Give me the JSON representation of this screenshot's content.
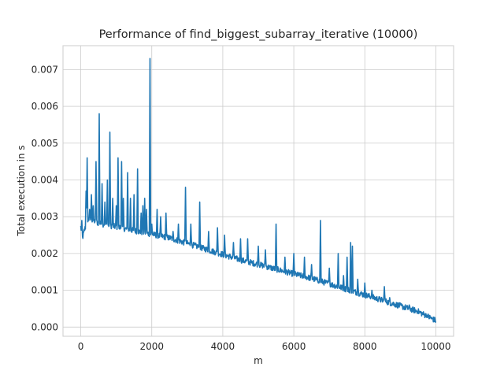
{
  "chart_data": {
    "type": "line",
    "title": "Performance of find_biggest_subarray_iterative  (10000)",
    "xlabel": "m",
    "ylabel": "Total execution in s",
    "xlim": [
      -500,
      10500
    ],
    "ylim": [
      -0.00025,
      0.00765
    ],
    "xticks": [
      0,
      2000,
      4000,
      6000,
      8000,
      10000
    ],
    "xtick_labels": [
      "0",
      "2000",
      "4000",
      "6000",
      "8000",
      "10000"
    ],
    "yticks": [
      0.0,
      0.001,
      0.002,
      0.003,
      0.004,
      0.005,
      0.006,
      0.007
    ],
    "ytick_labels": [
      "0.000",
      "0.001",
      "0.002",
      "0.003",
      "0.004",
      "0.005",
      "0.006",
      "0.007"
    ],
    "grid": true,
    "legend": "none",
    "color": "#1f77b4",
    "x_range": [
      0,
      10000
    ],
    "baseline": [
      [
        0,
        0.0027
      ],
      [
        50,
        0.0024
      ],
      [
        100,
        0.0026
      ],
      [
        200,
        0.0029
      ],
      [
        300,
        0.0029
      ],
      [
        500,
        0.0028
      ],
      [
        750,
        0.00275
      ],
      [
        1000,
        0.0027
      ],
      [
        1250,
        0.00265
      ],
      [
        1500,
        0.0026
      ],
      [
        2000,
        0.0025
      ],
      [
        2500,
        0.0024
      ],
      [
        3000,
        0.00225
      ],
      [
        3500,
        0.0021
      ],
      [
        4000,
        0.00195
      ],
      [
        4500,
        0.0018
      ],
      [
        5000,
        0.00168
      ],
      [
        5500,
        0.00155
      ],
      [
        6000,
        0.00142
      ],
      [
        6500,
        0.0013
      ],
      [
        7000,
        0.00115
      ],
      [
        7500,
        0.001
      ],
      [
        8000,
        0.00085
      ],
      [
        8500,
        0.0007
      ],
      [
        9000,
        0.00055
      ],
      [
        9500,
        0.0004
      ],
      [
        10000,
        0.00015
      ]
    ],
    "spikes": [
      [
        30,
        0.0029
      ],
      [
        150,
        0.0037
      ],
      [
        180,
        0.0046
      ],
      [
        250,
        0.0032
      ],
      [
        300,
        0.0036
      ],
      [
        350,
        0.0033
      ],
      [
        430,
        0.0045
      ],
      [
        520,
        0.0058
      ],
      [
        600,
        0.0039
      ],
      [
        680,
        0.0034
      ],
      [
        750,
        0.004
      ],
      [
        820,
        0.0053
      ],
      [
        900,
        0.0035
      ],
      [
        1000,
        0.0033
      ],
      [
        1050,
        0.0046
      ],
      [
        1150,
        0.0045
      ],
      [
        1200,
        0.0035
      ],
      [
        1320,
        0.0042
      ],
      [
        1400,
        0.0035
      ],
      [
        1500,
        0.0036
      ],
      [
        1600,
        0.0043
      ],
      [
        1700,
        0.0031
      ],
      [
        1750,
        0.0033
      ],
      [
        1800,
        0.0035
      ],
      [
        1850,
        0.0032
      ],
      [
        1950,
        0.0073
      ],
      [
        2000,
        0.0028
      ],
      [
        2150,
        0.0032
      ],
      [
        2250,
        0.003
      ],
      [
        2400,
        0.0031
      ],
      [
        2600,
        0.0026
      ],
      [
        2750,
        0.0028
      ],
      [
        2950,
        0.0038
      ],
      [
        3100,
        0.0028
      ],
      [
        3350,
        0.0034
      ],
      [
        3600,
        0.0026
      ],
      [
        3850,
        0.0027
      ],
      [
        4050,
        0.0025
      ],
      [
        4300,
        0.0023
      ],
      [
        4500,
        0.0024
      ],
      [
        4700,
        0.0024
      ],
      [
        5000,
        0.0022
      ],
      [
        5200,
        0.0021
      ],
      [
        5500,
        0.0028
      ],
      [
        5750,
        0.0019
      ],
      [
        6000,
        0.002
      ],
      [
        6300,
        0.0019
      ],
      [
        6500,
        0.0017
      ],
      [
        6750,
        0.0029
      ],
      [
        7000,
        0.0016
      ],
      [
        7250,
        0.002
      ],
      [
        7400,
        0.0014
      ],
      [
        7500,
        0.0019
      ],
      [
        7600,
        0.0023
      ],
      [
        7650,
        0.0022
      ],
      [
        7800,
        0.0013
      ],
      [
        8000,
        0.0012
      ],
      [
        8200,
        0.001
      ],
      [
        8400,
        0.0008
      ],
      [
        8550,
        0.0011
      ],
      [
        8700,
        0.0008
      ],
      [
        9000,
        0.0006
      ],
      [
        9250,
        0.0006
      ],
      [
        9500,
        0.0004
      ],
      [
        9750,
        0.00025
      ]
    ]
  }
}
